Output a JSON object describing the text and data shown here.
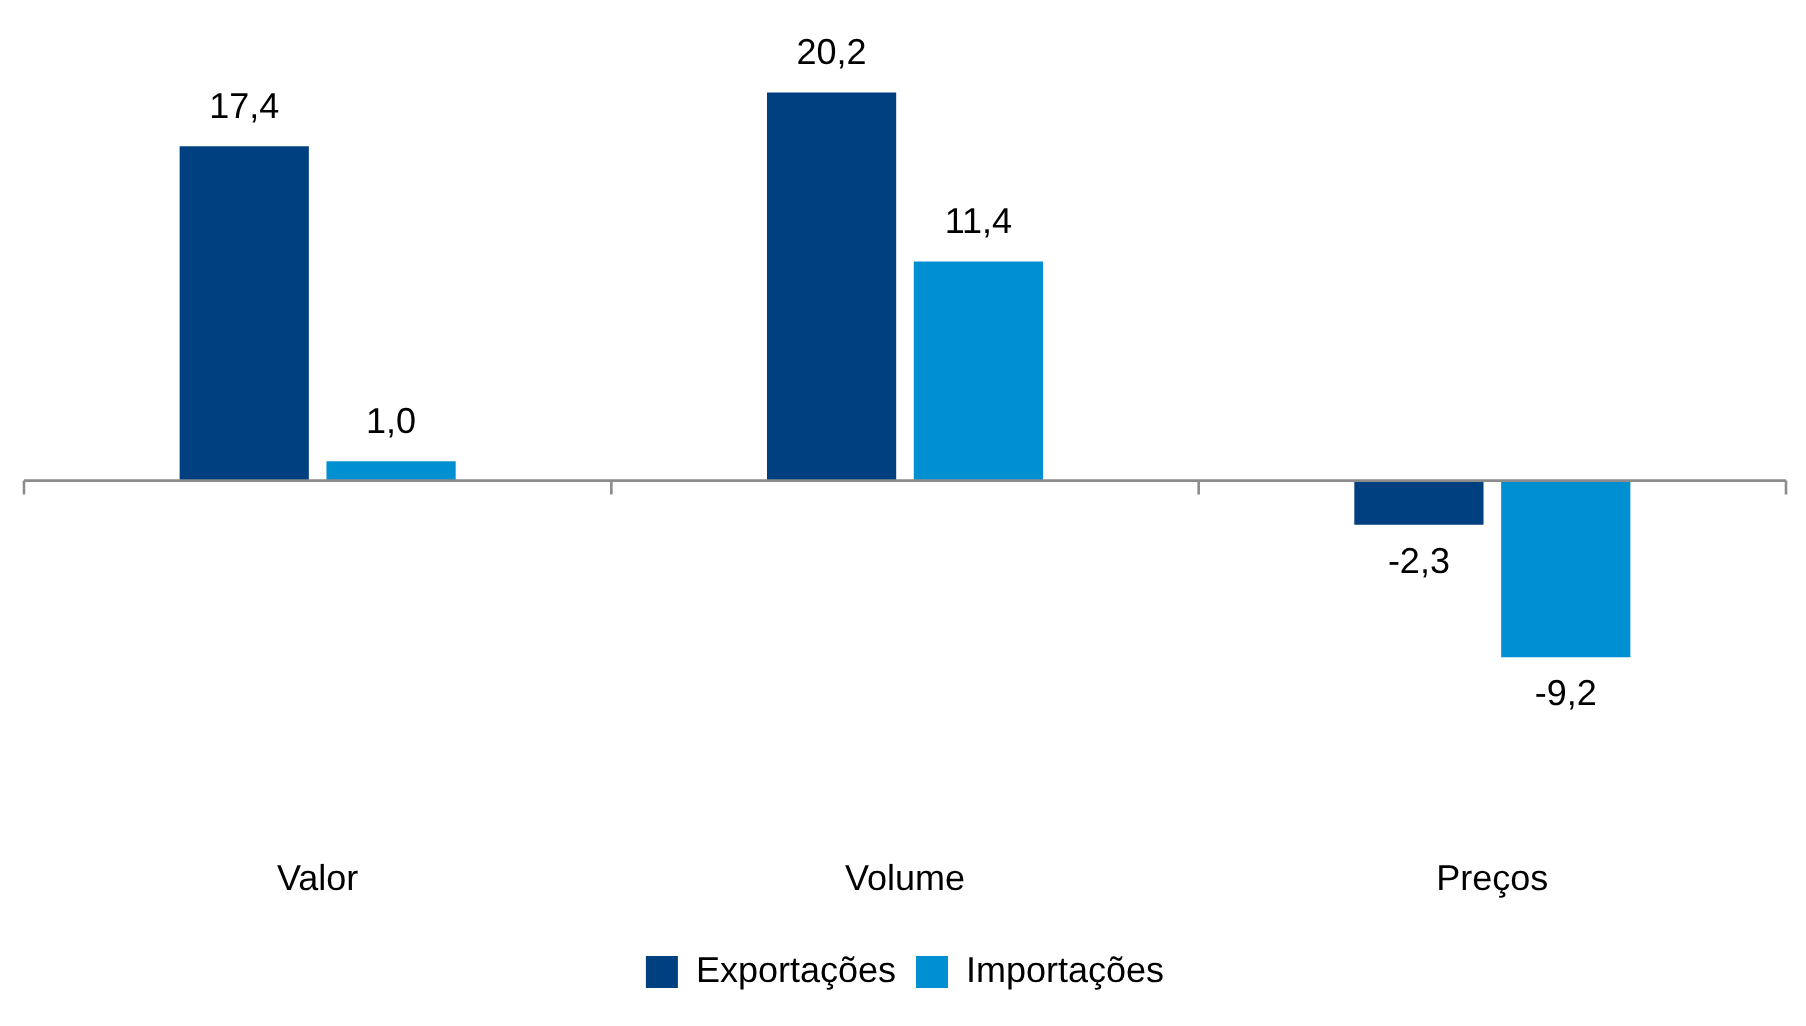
{
  "chart_data": {
    "type": "bar",
    "categories": [
      "Valor",
      "Volume",
      "Preços"
    ],
    "series": [
      {
        "name": "Exportações",
        "color": "#003f80",
        "values": [
          17.4,
          20.2,
          -2.3
        ],
        "value_labels": [
          "17,4",
          "20,2",
          "-2,3"
        ]
      },
      {
        "name": "Importações",
        "color": "#0090d2",
        "values": [
          1.0,
          11.4,
          -9.2
        ],
        "value_labels": [
          "1,0",
          "11,4",
          "-9,2"
        ]
      }
    ],
    "legend": "bottom",
    "grid": false,
    "tick_labels": "x"
  }
}
